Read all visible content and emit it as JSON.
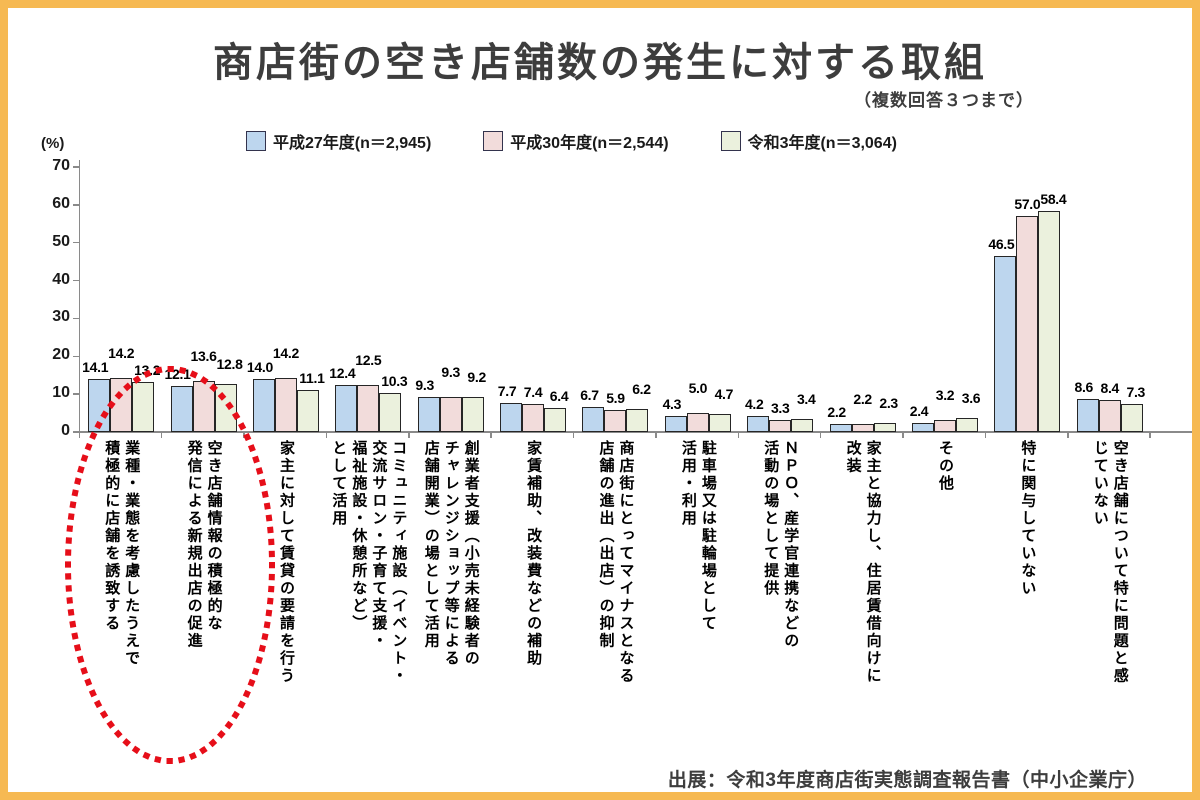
{
  "frame_color": "#F6B952",
  "title": "商店街の空き店舗数の発生に対する取組",
  "subtitle": "（複数回答３つまで）",
  "source": "出展：令和3年度商店街実態調査報告書（中小企業庁）",
  "legend": [
    {
      "label": "平成27年度(n＝2,945)",
      "color": "#BDD6EE"
    },
    {
      "label": "平成30年度(n＝2,544)",
      "color": "#F2DCDB"
    },
    {
      "label": "令和3年度(n＝3,064)",
      "color": "#EBF1DD"
    }
  ],
  "chart_data": {
    "type": "bar",
    "title": "商店街の空き店舗数の発生に対する取組",
    "subtitle": "（複数回答３つまで）",
    "ylabel": "(%)",
    "ylim": [
      0,
      70
    ],
    "ytick_step": 10,
    "grid": false,
    "legend_position": "top",
    "categories": [
      "業種・業態を考慮したうえで\n積極的に店舗を誘致する",
      "空き店舗情報の積極的な\n発信による新規出店の促進",
      "家主に対して賃貸の要請を行う",
      "コミュニティ施設（イベント・\n交流サロン・子育て支援・\n福祉施設・休憩所など）\nとして活用",
      "創業者支援（小売未経験者の\nチャレンジショップ等による\n店舗開業）の場として活用",
      "家賃補助、改装費などの補助",
      "商店街にとってマイナスとなる\n店舗の進出（出店）の抑制",
      "駐車場又は駐輪場として\n活用・利用",
      "ＮＰＯ、産学官連携などの\n活動の場として提供",
      "家主と協力し、住居賃借向けに\n改装",
      "その他",
      "特に関与していない",
      "空き店舗について特に問題と感\nじていない"
    ],
    "series": [
      {
        "name": "平成27年度(n＝2,945)",
        "color": "#BDD6EE",
        "values": [
          14.1,
          12.1,
          14.0,
          12.4,
          9.3,
          7.7,
          6.7,
          4.3,
          4.2,
          2.2,
          2.4,
          46.5,
          8.6
        ]
      },
      {
        "name": "平成30年度(n＝2,544)",
        "color": "#F2DCDB",
        "values": [
          14.2,
          13.6,
          14.2,
          12.5,
          9.3,
          7.4,
          5.9,
          5.0,
          3.3,
          2.2,
          3.2,
          57.0,
          8.4
        ]
      },
      {
        "name": "令和3年度(n＝3,064)",
        "color": "#EBF1DD",
        "values": [
          13.2,
          12.8,
          11.1,
          10.3,
          9.2,
          6.4,
          6.2,
          4.7,
          3.4,
          2.3,
          3.6,
          58.4,
          7.3
        ]
      }
    ],
    "annotation": {
      "type": "dotted-ellipse",
      "color": "#E60E19",
      "highlighted_categories": [
        0,
        1
      ],
      "meaning": "red dotted ellipse circling the first two category labels"
    }
  }
}
